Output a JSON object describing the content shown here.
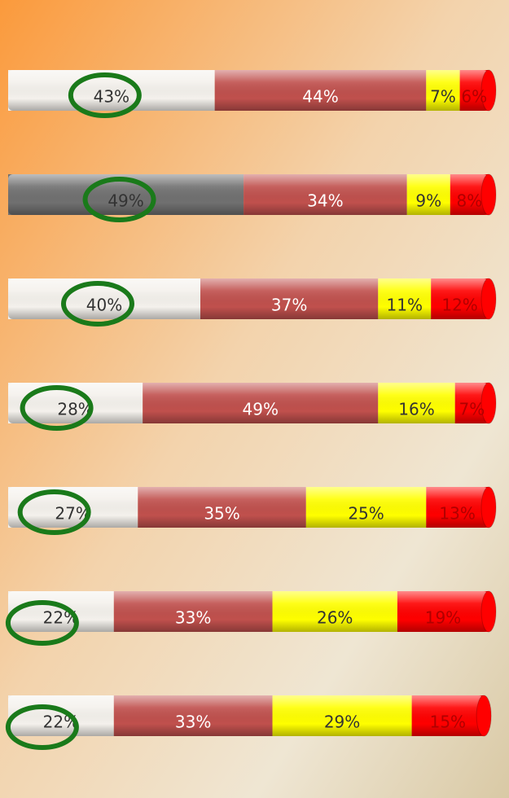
{
  "chart_data": {
    "type": "stacked-bar",
    "orientation": "horizontal",
    "categories": [
      null,
      null,
      null,
      null,
      null,
      null,
      null
    ],
    "xlim": [
      0,
      100
    ],
    "series": [
      {
        "color": "#f4f1ec",
        "colors": [
          "#f4f1ec",
          "#707070",
          "#f4f1ec",
          "#f4f1ec",
          "#f4f1ec",
          "#f4f1ec",
          "#f4f1ec"
        ],
        "values": [
          43,
          49,
          40,
          28,
          27,
          22,
          22
        ],
        "value_labels": [
          "43%",
          "49%",
          "40%",
          "28%",
          "27%",
          "22%",
          "22%"
        ]
      },
      {
        "color": "#c0504d",
        "values": [
          44,
          34,
          37,
          49,
          35,
          33,
          33
        ],
        "value_labels": [
          "44%",
          "34%",
          "37%",
          "49%",
          "35%",
          "33%",
          "33%"
        ]
      },
      {
        "color": "#ffff00",
        "values": [
          7,
          9,
          11,
          16,
          25,
          26,
          29
        ],
        "value_labels": [
          "7%",
          "9%",
          "11%",
          "16%",
          "25%",
          "26%",
          "29%"
        ]
      },
      {
        "color": "#ff0000",
        "values": [
          6,
          8,
          12,
          7,
          13,
          19,
          15
        ],
        "value_labels": [
          "6%",
          "8%",
          "12%",
          "7%",
          "13%",
          "19%",
          "15%"
        ]
      }
    ]
  }
}
